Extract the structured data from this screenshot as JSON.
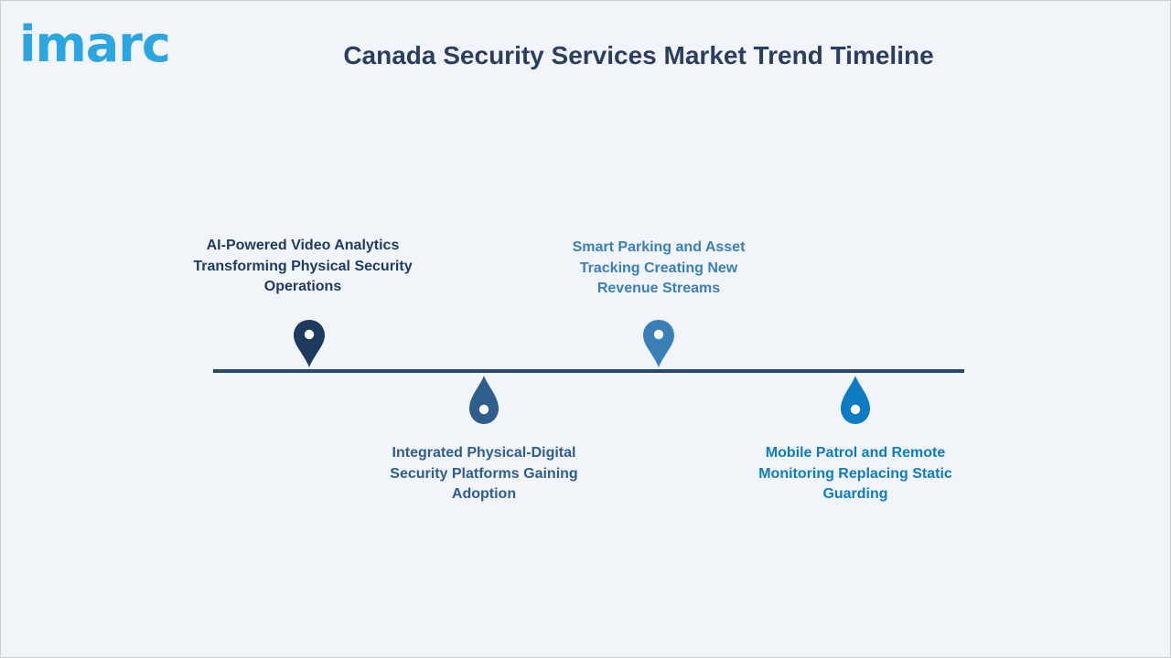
{
  "brand": {
    "logo_text": "imarc",
    "color": "#2ba6e0"
  },
  "title": "Canada Security Services Market Trend Timeline",
  "timeline": {
    "items": [
      {
        "label": "AI-Powered Video Analytics Transforming Physical Security Operations",
        "position": "above",
        "color": "#1f3a5f",
        "icon": "map-pin-icon"
      },
      {
        "label": "Integrated Physical-Digital Security Platforms Gaining Adoption",
        "position": "below",
        "color": "#2e5d8e",
        "icon": "drop-marker-icon"
      },
      {
        "label": "Smart Parking and Asset Tracking Creating New Revenue Streams",
        "position": "above",
        "color": "#3a7fb8",
        "icon": "map-pin-icon"
      },
      {
        "label": "Mobile Patrol and Remote Monitoring Replacing Static Guarding",
        "position": "below",
        "color": "#0e7cc2",
        "icon": "drop-marker-icon"
      }
    ]
  }
}
